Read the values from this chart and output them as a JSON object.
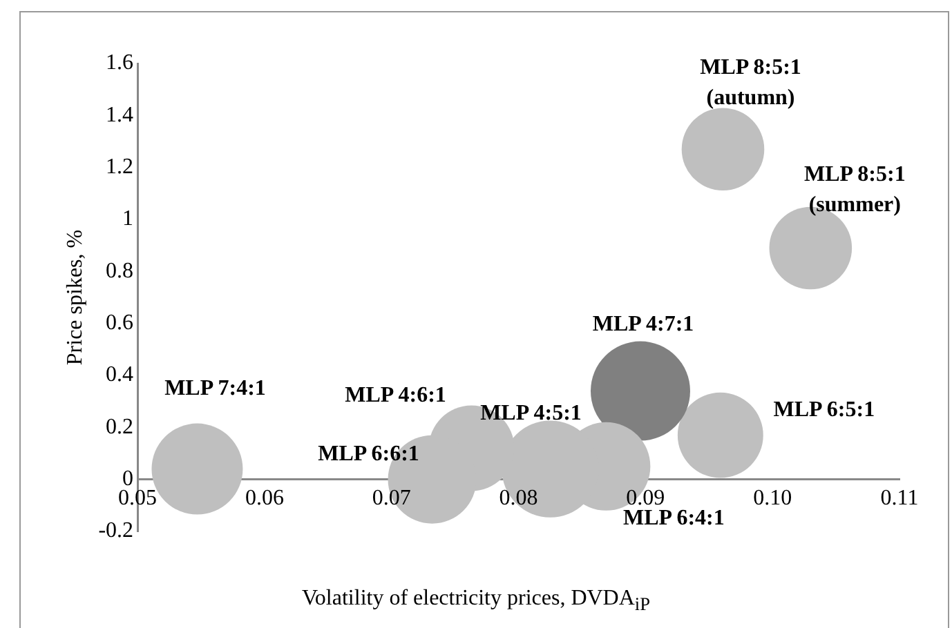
{
  "chart_data": {
    "type": "bubble",
    "xlabel": "Volatility of electricity prices, DVDA$_{iP}$",
    "ylabel": "Price spikes, %",
    "xlim": [
      0.05,
      0.11
    ],
    "ylim": [
      -0.2,
      1.6
    ],
    "xticks": [
      0.05,
      0.06,
      0.07,
      0.08,
      0.09,
      {
        "value": 0.1,
        "label": "0.10"
      },
      0.11
    ],
    "yticks": [
      -0.2,
      0,
      0.2,
      0.4,
      0.6,
      0.8,
      1,
      1.2,
      1.4,
      1.6
    ],
    "grid": false,
    "legend": false,
    "series": [
      {
        "name": "MLP 7:4:1",
        "color": "#bfbfbf",
        "x": [
          0.0547
        ],
        "values": [
          0.04
        ],
        "sizes": [
          0.84
        ]
      },
      {
        "name": "MLP 6:6:1",
        "color": "#bfbfbf",
        "x": [
          0.0732
        ],
        "values": [
          0.0
        ],
        "sizes": [
          0.79
        ]
      },
      {
        "name": "MLP 4:6:1",
        "color": "#bfbfbf",
        "x": [
          0.0763
        ],
        "values": [
          0.12
        ],
        "sizes": [
          0.74
        ]
      },
      {
        "name": "MLP 4:5:1",
        "color": "#bfbfbf",
        "x": [
          0.0825
        ],
        "values": [
          0.04
        ],
        "sizes": [
          0.95
        ]
      },
      {
        "name": "MLP 6:4:1",
        "color": "#bfbfbf",
        "x": [
          0.0869
        ],
        "values": [
          0.05
        ],
        "sizes": [
          0.79
        ]
      },
      {
        "name": "MLP 4:7:1",
        "color": "#808080",
        "x": [
          0.0896
        ],
        "values": [
          0.34
        ],
        "sizes": [
          1
        ]
      },
      {
        "name": "MLP 6:5:1",
        "color": "#bfbfbf",
        "x": [
          0.0959
        ],
        "values": [
          0.17
        ],
        "sizes": [
          0.74
        ]
      },
      {
        "name": "MLP 8:5:1 (autumn)",
        "color": "#bfbfbf",
        "x": [
          0.0961
        ],
        "values": [
          1.27
        ],
        "sizes": [
          0.69
        ]
      },
      {
        "name": "MLP 8:5:1 (summer)",
        "color": "#bfbfbf",
        "x": [
          0.103
        ],
        "values": [
          0.89
        ],
        "sizes": [
          0.69
        ]
      }
    ]
  }
}
